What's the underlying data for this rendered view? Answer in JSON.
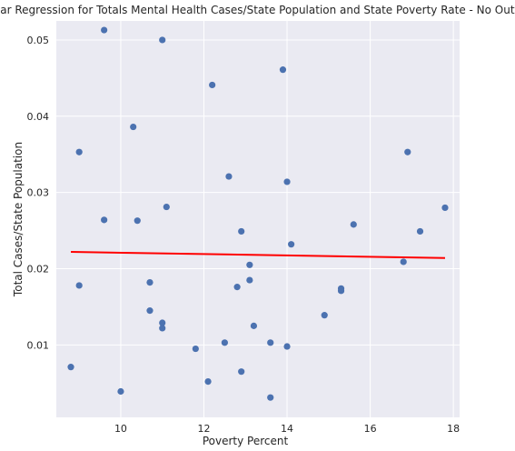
{
  "chart_data": {
    "type": "scatter",
    "title": "Linear Regression for Totals Mental Health Cases/State Population and State Poverty Rate - No Outliers",
    "xlabel": "Poverty Percent",
    "ylabel": "Total Cases/State Population",
    "xlim": [
      8.45,
      18.15
    ],
    "ylim": [
      0.0005,
      0.0525
    ],
    "x_ticks": [
      10,
      12,
      14,
      16,
      18
    ],
    "x_tick_labels": [
      "10",
      "12",
      "14",
      "16",
      "18"
    ],
    "y_ticks": [
      0.01,
      0.02,
      0.03,
      0.04,
      0.05
    ],
    "y_tick_labels": [
      "0.01",
      "0.02",
      "0.03",
      "0.04",
      "0.05"
    ],
    "grid": true,
    "background_color": "#EAEAF2",
    "point_color": "#4C72B0",
    "line_color": "#FF0000",
    "points": [
      {
        "x": 8.8,
        "y": 0.0071
      },
      {
        "x": 9.0,
        "y": 0.0353
      },
      {
        "x": 9.0,
        "y": 0.0178
      },
      {
        "x": 9.6,
        "y": 0.0513
      },
      {
        "x": 9.6,
        "y": 0.0264
      },
      {
        "x": 10.0,
        "y": 0.0039
      },
      {
        "x": 10.3,
        "y": 0.0386
      },
      {
        "x": 10.4,
        "y": 0.0263
      },
      {
        "x": 10.7,
        "y": 0.0182
      },
      {
        "x": 10.7,
        "y": 0.0145
      },
      {
        "x": 11.0,
        "y": 0.05
      },
      {
        "x": 11.0,
        "y": 0.0129
      },
      {
        "x": 11.0,
        "y": 0.0122
      },
      {
        "x": 11.1,
        "y": 0.0281
      },
      {
        "x": 11.8,
        "y": 0.0095
      },
      {
        "x": 12.1,
        "y": 0.0052
      },
      {
        "x": 12.2,
        "y": 0.0441
      },
      {
        "x": 12.5,
        "y": 0.0103
      },
      {
        "x": 12.6,
        "y": 0.0321
      },
      {
        "x": 12.8,
        "y": 0.0176
      },
      {
        "x": 12.9,
        "y": 0.0249
      },
      {
        "x": 12.9,
        "y": 0.0065
      },
      {
        "x": 13.1,
        "y": 0.0205
      },
      {
        "x": 13.1,
        "y": 0.0185
      },
      {
        "x": 13.2,
        "y": 0.0125
      },
      {
        "x": 13.6,
        "y": 0.0103
      },
      {
        "x": 13.6,
        "y": 0.0031
      },
      {
        "x": 13.9,
        "y": 0.0461
      },
      {
        "x": 14.0,
        "y": 0.0314
      },
      {
        "x": 14.0,
        "y": 0.0098
      },
      {
        "x": 14.1,
        "y": 0.0232
      },
      {
        "x": 14.9,
        "y": 0.0139
      },
      {
        "x": 15.3,
        "y": 0.0174
      },
      {
        "x": 15.3,
        "y": 0.0171
      },
      {
        "x": 15.6,
        "y": 0.0258
      },
      {
        "x": 16.8,
        "y": 0.0209
      },
      {
        "x": 16.9,
        "y": 0.0353
      },
      {
        "x": 17.2,
        "y": 0.0249
      },
      {
        "x": 17.8,
        "y": 0.028
      }
    ],
    "regression_line": {
      "x": [
        8.8,
        17.8
      ],
      "y": [
        0.0222,
        0.0214
      ]
    }
  }
}
